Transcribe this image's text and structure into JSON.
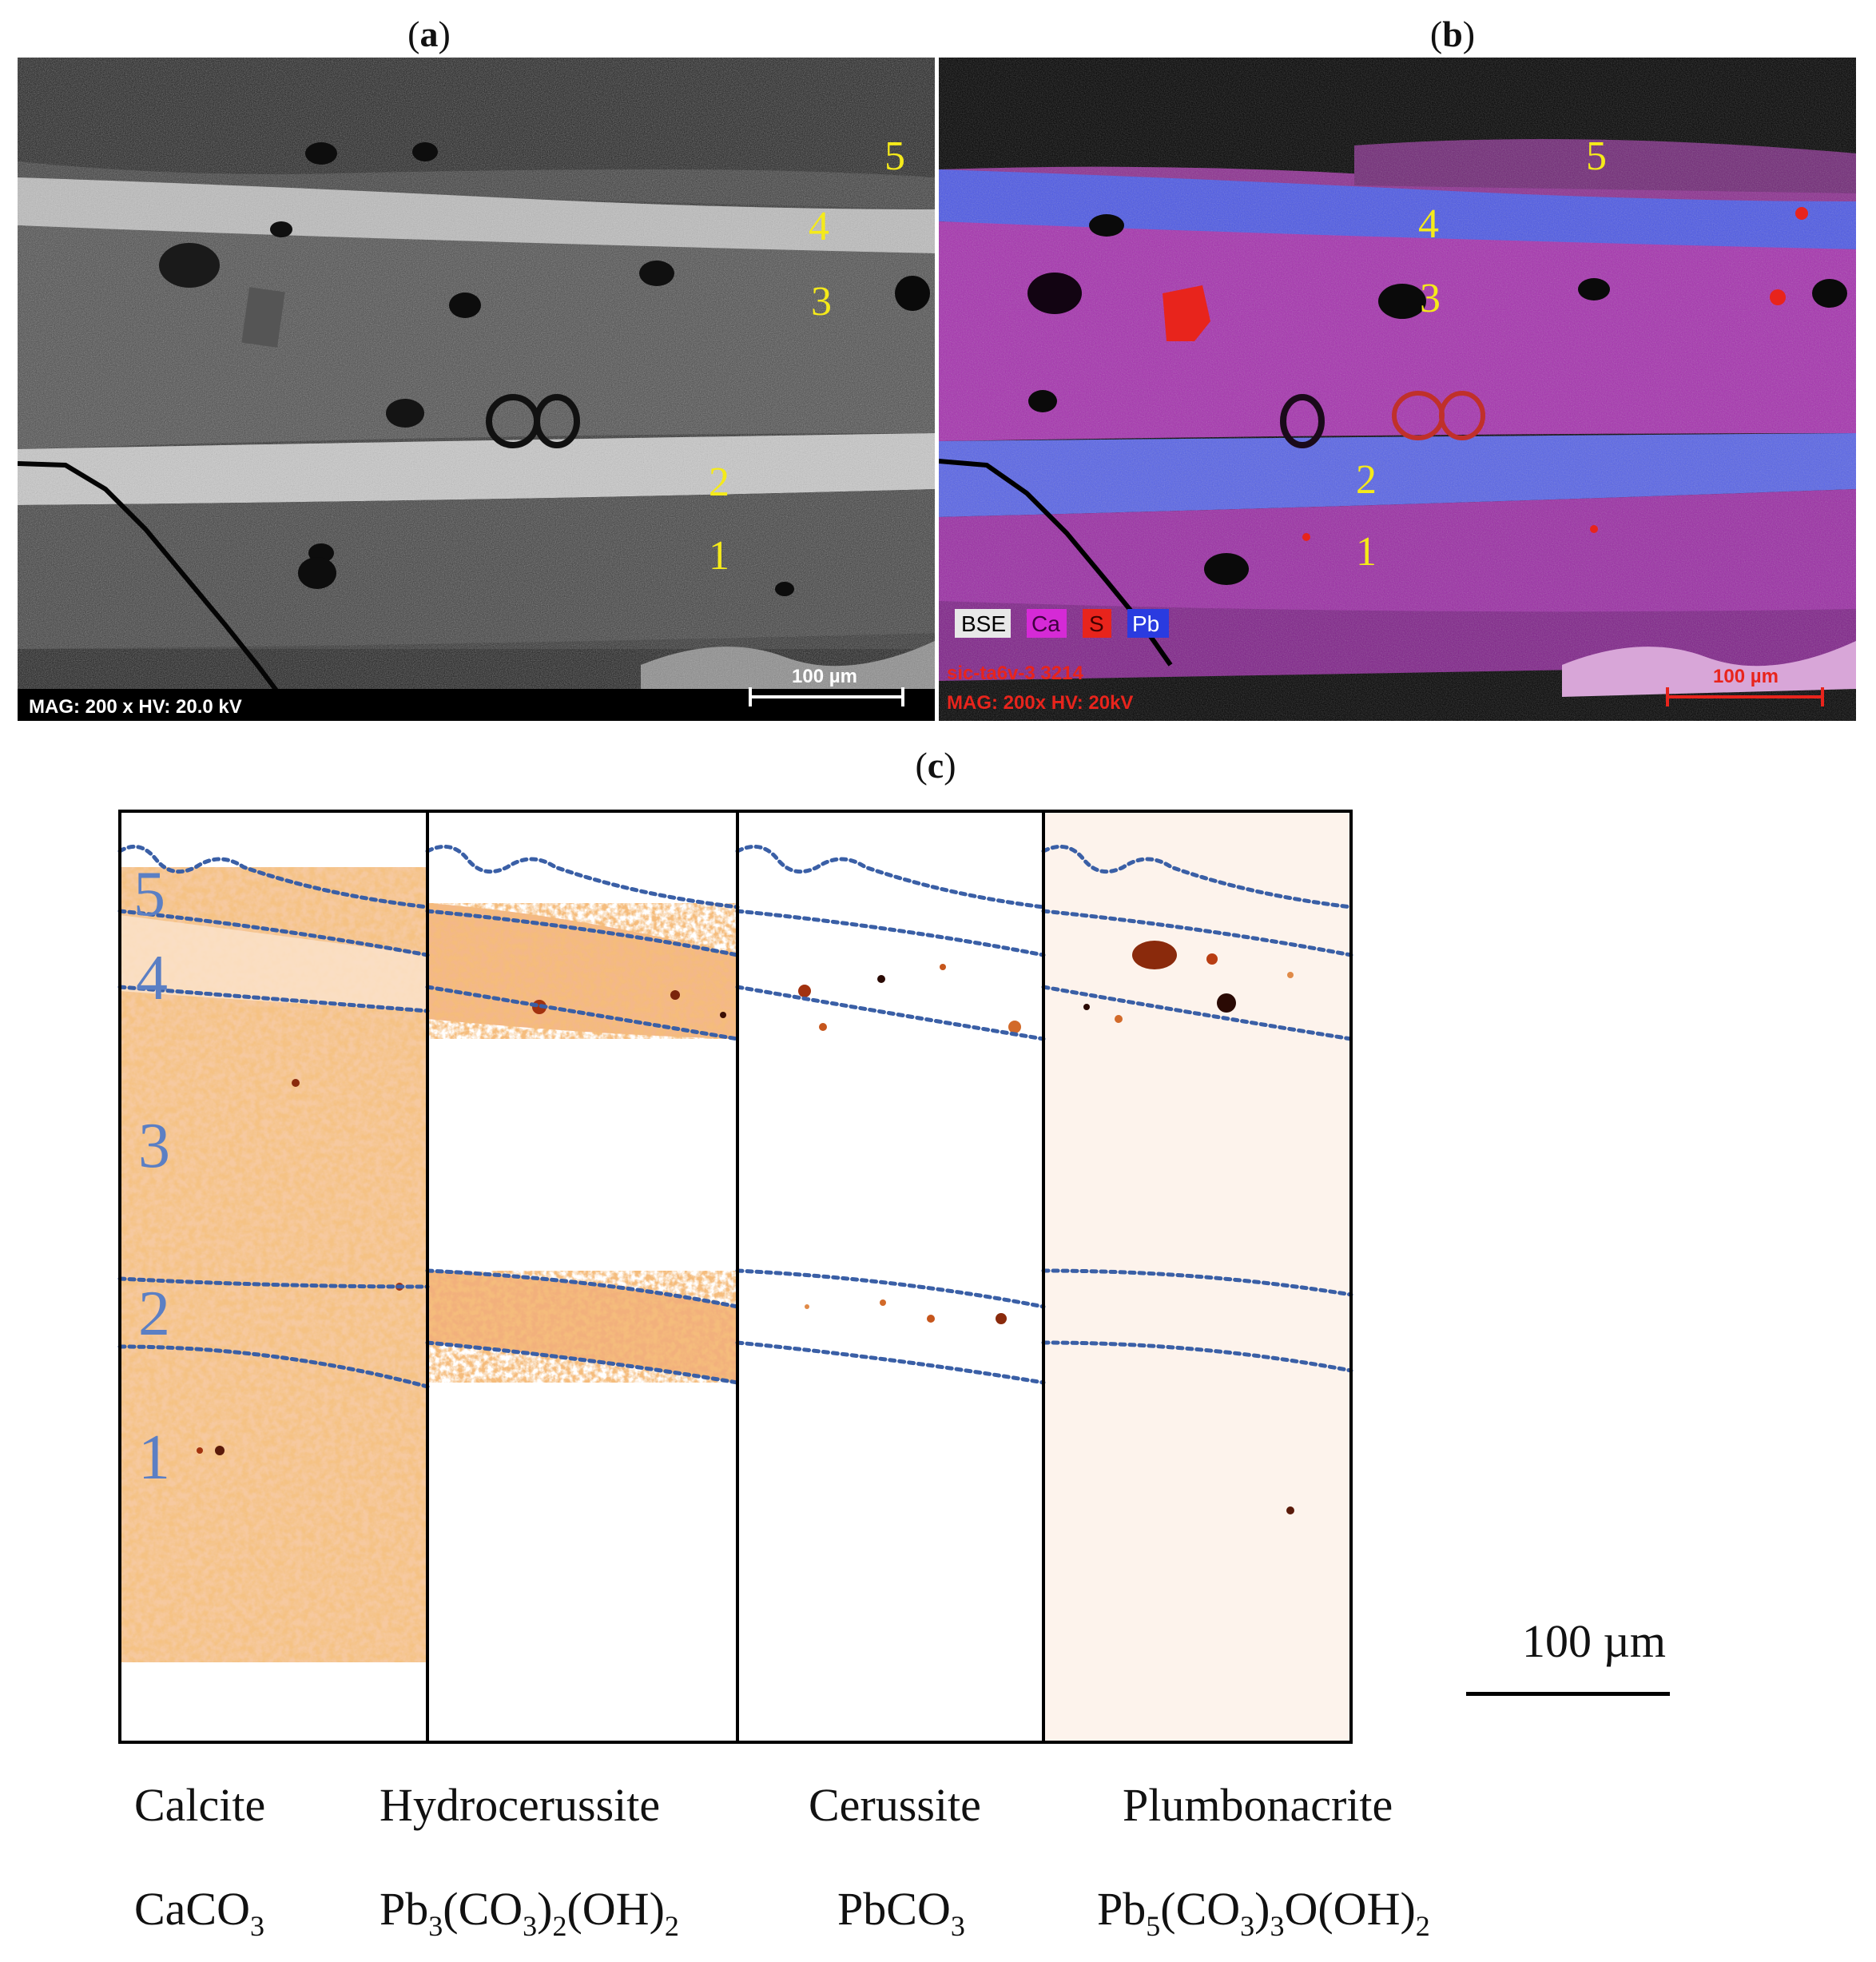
{
  "panels": {
    "a": {
      "label_open": "(",
      "label_letter": "a",
      "label_close": ")",
      "layers": [
        "1",
        "2",
        "3",
        "4",
        "5"
      ],
      "footer": "MAG: 200 x HV: 20.0 kV",
      "scale_bar": "100 µm"
    },
    "b": {
      "label_open": "(",
      "label_letter": "b",
      "label_close": ")",
      "layers": [
        "1",
        "2",
        "3",
        "4",
        "5"
      ],
      "legend": [
        "BSE",
        "Ca",
        "S",
        "Pb"
      ],
      "sample_id": "sic-ta6v-3 3214",
      "footer": "MAG: 200x  HV: 20kV",
      "scale_bar": "100 µm"
    },
    "c": {
      "label_open": "(",
      "label_letter": "c",
      "label_close": ")",
      "layers": [
        "1",
        "2",
        "3",
        "4",
        "5"
      ],
      "scale_bar": "100 µm",
      "minerals": [
        {
          "name": "Calcite",
          "formula_parts": [
            "CaCO",
            "3"
          ]
        },
        {
          "name": "Hydrocerussite",
          "formula_parts": [
            "Pb",
            "3",
            "(CO",
            "3",
            ")",
            "2",
            "(OH)",
            "2"
          ]
        },
        {
          "name": "Cerussite",
          "formula_parts": [
            "PbCO",
            "3"
          ]
        },
        {
          "name": "Plumbonacrite",
          "formula_parts": [
            "Pb",
            "5",
            "(CO",
            "3",
            ")",
            "3",
            "O(OH)",
            "2"
          ]
        }
      ]
    }
  },
  "colors": {
    "layer_label_yellow": "#f5ea1a",
    "map_orange": "#e8893a",
    "boundary_blue": "#3a5fa6",
    "layer_number_blue": "#5b7fc4",
    "eds_magenta": "#b12fb5",
    "eds_blue": "#4b57e6",
    "eds_red": "#e8241c"
  }
}
